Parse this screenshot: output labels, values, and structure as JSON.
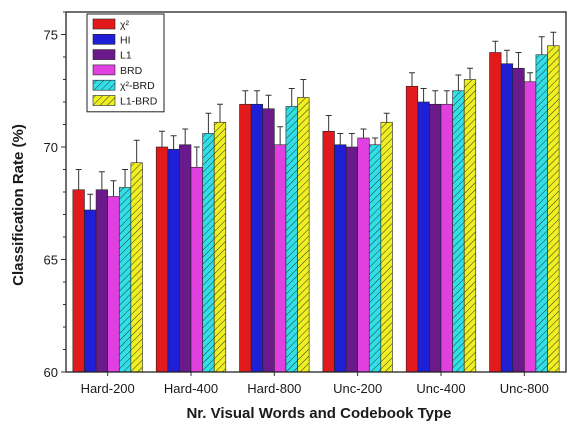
{
  "chart_data": {
    "type": "bar",
    "title": "",
    "xlabel": "Nr. Visual Words and Codebook Type",
    "ylabel": "Classification Rate (%)",
    "ylim": [
      60,
      76
    ],
    "yticks": [
      60,
      65,
      70,
      75
    ],
    "grid": false,
    "legend_position": "top-left",
    "error_bars": true,
    "categories": [
      "Hard-200",
      "Hard-400",
      "Hard-800",
      "Unc-200",
      "Unc-400",
      "Unc-800"
    ],
    "series": [
      {
        "name": "χ²",
        "color": "#e31a1c",
        "hatch": false,
        "values": [
          68.1,
          70.0,
          71.9,
          70.7,
          72.7,
          74.2
        ],
        "errors": [
          0.9,
          0.7,
          0.6,
          0.7,
          0.6,
          0.5
        ]
      },
      {
        "name": "HI",
        "color": "#1f1fd6",
        "hatch": false,
        "values": [
          67.2,
          69.9,
          71.9,
          70.1,
          72.0,
          73.7
        ],
        "errors": [
          0.7,
          0.6,
          0.6,
          0.5,
          0.6,
          0.6
        ]
      },
      {
        "name": "L1",
        "color": "#6a1a8a",
        "hatch": false,
        "values": [
          68.1,
          70.1,
          71.7,
          70.0,
          71.9,
          73.5
        ],
        "errors": [
          0.8,
          0.7,
          0.6,
          0.6,
          0.6,
          0.7
        ]
      },
      {
        "name": "BRD",
        "color": "#e040e0",
        "hatch": false,
        "values": [
          67.8,
          69.1,
          70.1,
          70.4,
          71.9,
          72.9
        ],
        "errors": [
          0.7,
          0.9,
          0.8,
          0.4,
          0.6,
          0.4
        ]
      },
      {
        "name": "χ²-BRD",
        "color": "#30e0e8",
        "hatch": true,
        "values": [
          68.2,
          70.6,
          71.8,
          70.1,
          72.5,
          74.1
        ],
        "errors": [
          0.8,
          0.9,
          0.8,
          0.3,
          0.7,
          0.8
        ]
      },
      {
        "name": "L1-BRD",
        "color": "#f0f020",
        "hatch": true,
        "values": [
          69.3,
          71.1,
          72.2,
          71.1,
          73.0,
          74.5
        ],
        "errors": [
          1.0,
          0.8,
          0.8,
          0.4,
          0.5,
          0.6
        ]
      }
    ]
  }
}
